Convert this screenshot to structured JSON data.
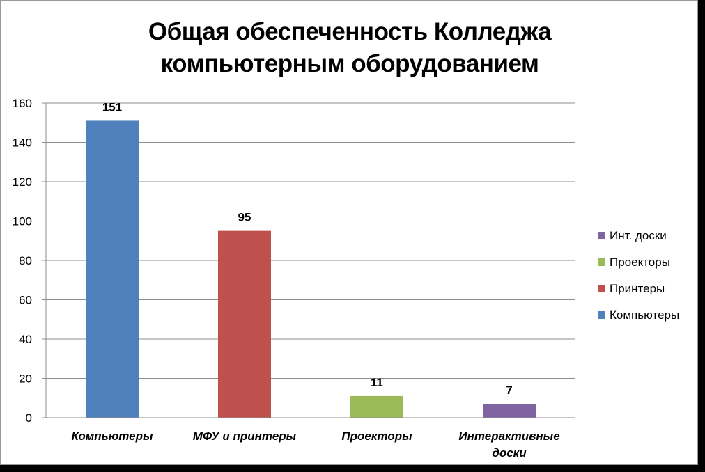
{
  "chart_data": {
    "type": "bar",
    "title_line1": "Общая обеспеченность Колледжа",
    "title_line2": "компьютерным оборудованием",
    "categories": [
      "Компьютеры",
      "МФУ и принтеры",
      "Проекторы",
      "Интерактивные доски"
    ],
    "categories_wrapped": [
      [
        "Компьютеры"
      ],
      [
        "МФУ и принтеры"
      ],
      [
        "Проекторы"
      ],
      [
        "Интерактивные",
        "доски"
      ]
    ],
    "values": [
      151,
      95,
      11,
      7
    ],
    "colors": [
      "#4F81BD",
      "#C0504D",
      "#9BBB59",
      "#8064A2"
    ],
    "ylim": [
      0,
      160
    ],
    "yticks": [
      0,
      20,
      40,
      60,
      80,
      100,
      120,
      140,
      160
    ],
    "grid": true,
    "legend_position": "right",
    "legend": [
      {
        "label": "Инт. доски",
        "color": "#8064A2"
      },
      {
        "label": "Проекторы",
        "color": "#9BBB59"
      },
      {
        "label": "Принтеры",
        "color": "#C0504D"
      },
      {
        "label": "Компьютеры",
        "color": "#4F81BD"
      }
    ]
  }
}
